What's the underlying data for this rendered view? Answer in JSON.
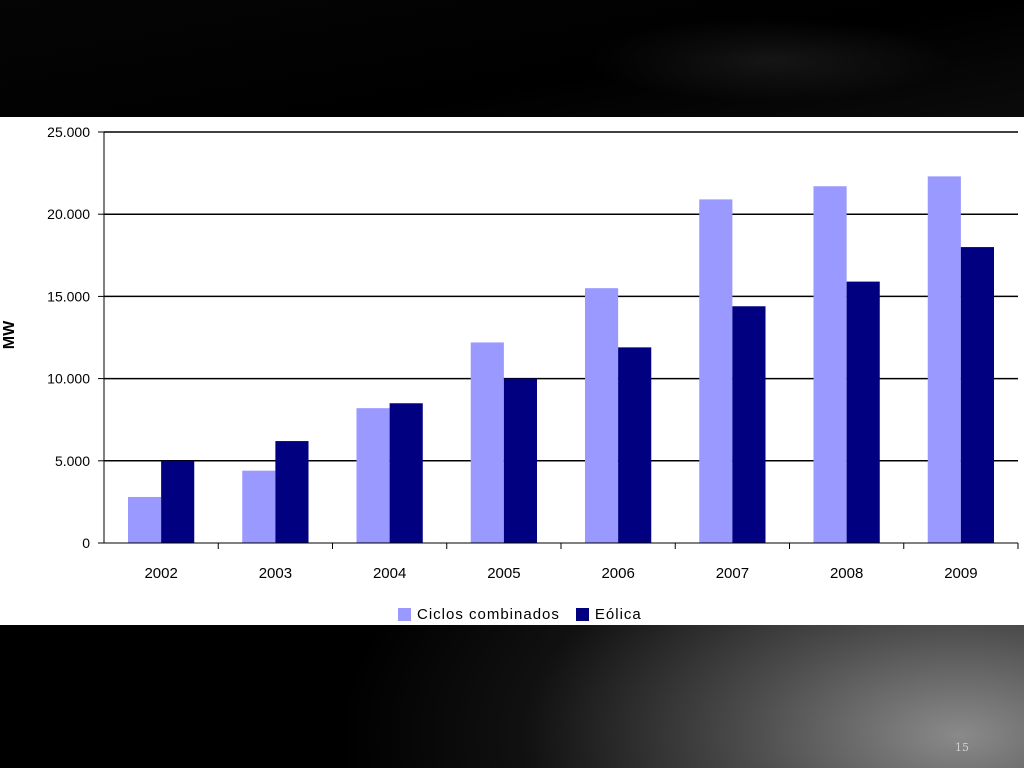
{
  "colors": {
    "ciclos": "#9999ff",
    "eolica": "#000080",
    "grid": "#000000",
    "slide_bg": "#000000"
  },
  "page_number": "15",
  "chart_data": {
    "type": "bar",
    "title": "",
    "xlabel": "",
    "ylabel": "MW",
    "categories": [
      "2002",
      "2003",
      "2004",
      "2005",
      "2006",
      "2007",
      "2008",
      "2009"
    ],
    "series": [
      {
        "name": "Ciclos combinados",
        "values": [
          2800,
          4400,
          8200,
          12200,
          15500,
          20900,
          21700,
          22300
        ]
      },
      {
        "name": "Eólica",
        "values": [
          5000,
          6200,
          8500,
          10000,
          11900,
          14400,
          15900,
          18000
        ]
      }
    ],
    "ylim": [
      0,
      25000
    ],
    "yticks": [
      0,
      5000,
      10000,
      15000,
      20000,
      25000
    ],
    "ytick_labels": [
      "0",
      "5.000",
      "10.000",
      "15.000",
      "20.000",
      "25.000"
    ],
    "grid": true,
    "legend_placement": "bottom"
  }
}
